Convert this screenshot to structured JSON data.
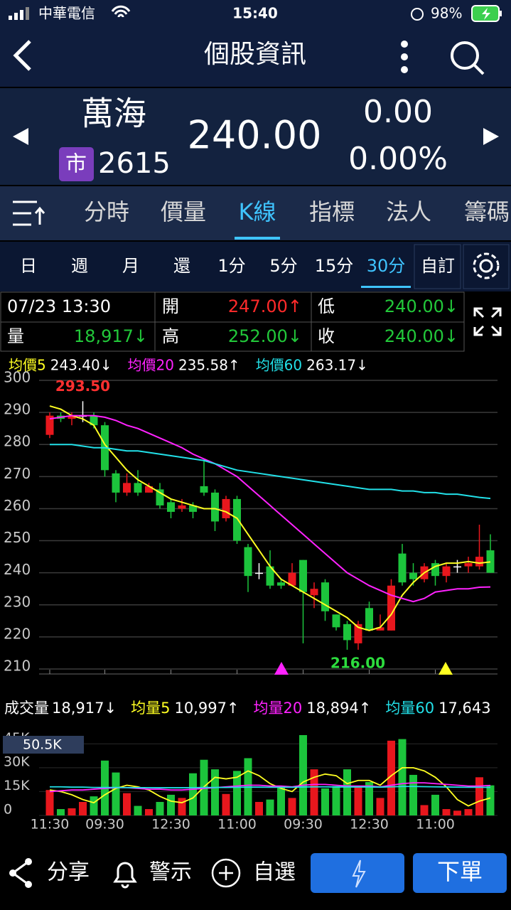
{
  "status": {
    "carrier": "中華電信",
    "time": "15:40",
    "battery": "98%"
  },
  "header": {
    "title": "個股資訊"
  },
  "stock": {
    "name": "萬海",
    "market": "市",
    "code": "2615",
    "price": "240.00",
    "change": "0.00",
    "change_pct": "0.00%"
  },
  "tabs": [
    "分時",
    "價量",
    "K線",
    "指標",
    "法人",
    "籌碼"
  ],
  "periods": [
    "日",
    "週",
    "月",
    "還",
    "1分",
    "5分",
    "15分",
    "30分",
    "自訂"
  ],
  "info": {
    "time": "07/23 13:30",
    "open_label": "開",
    "open": "247.00↑",
    "low_label": "低",
    "low": "240.00↓",
    "volume_label": "量",
    "volume": "18,917↓",
    "high_label": "高",
    "high": "252.00↓",
    "close_label": "收",
    "close": "240.00↓"
  },
  "chart_data": [
    {
      "type": "candlestick",
      "open": [
        283,
        289,
        288,
        289,
        289,
        286,
        271,
        265,
        268,
        265,
        266,
        262,
        260,
        261,
        267,
        265,
        257,
        263,
        248,
        240,
        242,
        237,
        236,
        244,
        233,
        237,
        227,
        224,
        218,
        229,
        222,
        222,
        246,
        240,
        238,
        243,
        239,
        242,
        242,
        242,
        247
      ],
      "high": [
        290,
        290,
        290,
        293.5,
        290,
        287,
        272,
        271,
        272,
        268,
        268,
        263,
        263,
        262,
        275,
        266,
        264,
        264,
        249,
        243,
        247,
        238,
        243,
        244,
        237,
        238,
        227,
        225,
        225,
        231,
        227,
        238,
        249,
        243,
        243,
        244,
        243,
        244,
        245,
        255,
        252
      ],
      "low": [
        282,
        287,
        286,
        287,
        285,
        270,
        262,
        264,
        264,
        265,
        260,
        257,
        259,
        257,
        264,
        253,
        256,
        249,
        234,
        238,
        235,
        235,
        236,
        218,
        229,
        225,
        222,
        216,
        216,
        222,
        222,
        222,
        236,
        236,
        237,
        236,
        237,
        240,
        240,
        241,
        240
      ],
      "close": [
        289,
        288,
        289,
        289,
        286,
        272,
        265,
        268,
        265,
        267,
        261,
        259,
        261,
        259,
        265,
        256,
        263,
        250,
        239,
        240,
        236,
        236,
        240,
        234,
        235,
        228,
        223,
        219,
        224,
        222,
        223,
        236,
        237,
        238,
        242,
        239,
        242,
        242,
        243,
        245,
        240
      ],
      "up_color": "#e8171d",
      "down_color": "#1cc43c",
      "lines": [
        {
          "name": "均價5",
          "last_label": "243.40↓",
          "color": "#ffff22",
          "values": [
            292,
            291,
            289,
            288,
            286,
            280,
            276,
            272,
            269,
            267,
            265,
            263,
            262,
            261,
            260,
            260,
            259,
            257,
            252,
            247,
            242,
            238,
            236,
            234,
            232,
            230,
            228,
            226,
            223,
            222,
            223,
            227,
            233,
            237,
            240,
            242,
            243,
            243,
            243.5,
            243,
            243.4
          ]
        },
        {
          "name": "均價20",
          "last_label": "235.58↑",
          "color": "#ff22ff",
          "values": [
            288,
            288.5,
            289,
            289,
            289,
            288.5,
            287.5,
            286,
            285,
            283.5,
            282,
            280.5,
            279,
            277,
            275.5,
            274,
            272,
            270,
            267,
            264,
            261,
            258,
            255,
            252,
            249,
            246,
            243,
            240,
            238,
            236,
            234.5,
            233,
            232,
            231,
            232,
            234,
            234.5,
            235,
            235,
            235.5,
            235.58
          ]
        },
        {
          "name": "均價60",
          "last_label": "263.17↓",
          "color": "#22e0e8",
          "values": [
            280,
            280,
            280,
            279.5,
            279,
            279,
            278.5,
            278,
            278,
            277.5,
            277,
            276.5,
            276,
            275.5,
            275,
            274,
            273,
            272,
            271.5,
            271,
            270.5,
            270,
            269.5,
            269,
            268.5,
            268,
            267.5,
            267,
            266.5,
            266,
            266,
            266,
            265.5,
            265.5,
            265,
            265,
            264.5,
            264.5,
            264,
            263.5,
            263.17
          ]
        }
      ],
      "high_label": "293.50",
      "low_label": "216.00",
      "ylim": [
        210,
        300
      ],
      "yticks": [
        210,
        220,
        230,
        240,
        250,
        260,
        270,
        280,
        290,
        300
      ],
      "grid": true
    },
    {
      "type": "bar",
      "title": "成交量",
      "title_value": "18,917↓",
      "categories": [
        "11:30",
        null,
        null,
        null,
        null,
        "09:30",
        null,
        null,
        null,
        null,
        null,
        "12:30",
        null,
        null,
        null,
        null,
        null,
        "11:00",
        null,
        null,
        null,
        null,
        null,
        "09:30",
        null,
        null,
        null,
        null,
        null,
        "12:30",
        null,
        null,
        null,
        null,
        null,
        "11:00",
        null,
        null,
        null,
        null,
        null
      ],
      "values": [
        16000,
        4000,
        4500,
        8500,
        12000,
        34500,
        27000,
        14000,
        6000,
        4000,
        8500,
        13000,
        11000,
        26500,
        35000,
        29000,
        13500,
        28000,
        36000,
        8500,
        10000,
        18000,
        11000,
        50500,
        29000,
        17000,
        18500,
        29000,
        18500,
        21000,
        11000,
        47000,
        48000,
        25500,
        6500,
        13000,
        4000,
        3000,
        4000,
        24000,
        18917
      ],
      "lines": [
        {
          "name": "均量5",
          "last_label": "10,997↑",
          "color": "#ffff22",
          "values": [
            16000,
            15000,
            13000,
            10000,
            8000,
            13000,
            17000,
            19000,
            18000,
            16000,
            12000,
            9000,
            8000,
            11000,
            18000,
            24000,
            23000,
            24000,
            28000,
            25000,
            20000,
            17000,
            15000,
            21000,
            24000,
            26000,
            25000,
            20000,
            22000,
            22000,
            19000,
            25000,
            30000,
            30000,
            28000,
            24000,
            18000,
            10000,
            6000,
            9000,
            10997
          ]
        },
        {
          "name": "均量20",
          "last_label": "18,894↑",
          "color": "#ff22ff",
          "values": [
            15000,
            15500,
            16000,
            16000,
            16500,
            17000,
            17500,
            17500,
            17000,
            16500,
            16500,
            16000,
            16000,
            16500,
            17000,
            17500,
            18000,
            18500,
            19000,
            19000,
            18500,
            18500,
            18000,
            19000,
            19500,
            19500,
            19000,
            18500,
            18500,
            18500,
            18000,
            19000,
            20000,
            20500,
            20500,
            20000,
            19500,
            19000,
            18500,
            18500,
            18894
          ]
        },
        {
          "name": "均量60",
          "last_label": "17,643",
          "color": "#22e0e8",
          "values": [
            18000,
            18000,
            17800,
            17800,
            17600,
            17600,
            17600,
            17500,
            17500,
            17500,
            17400,
            17400,
            17400,
            17500,
            17600,
            17600,
            17600,
            17700,
            17800,
            17800,
            17700,
            17700,
            17700,
            17900,
            18000,
            18000,
            17900,
            17900,
            17900,
            17900,
            17800,
            18000,
            18200,
            18200,
            18100,
            18000,
            17900,
            17800,
            17700,
            17700,
            17643
          ]
        }
      ],
      "max_tag": {
        "value": 50500,
        "label": "50.5K"
      },
      "ylim": [
        0,
        50500
      ],
      "yticks": [
        0,
        {
          "value": 15000,
          "label": "15K"
        },
        {
          "value": 30000,
          "label": "30K"
        },
        {
          "value": 45000,
          "label": "45K"
        }
      ],
      "grid": true
    }
  ],
  "toolbar": {
    "share": "分享",
    "alert": "警示",
    "watch": "自選",
    "order": "下單"
  }
}
